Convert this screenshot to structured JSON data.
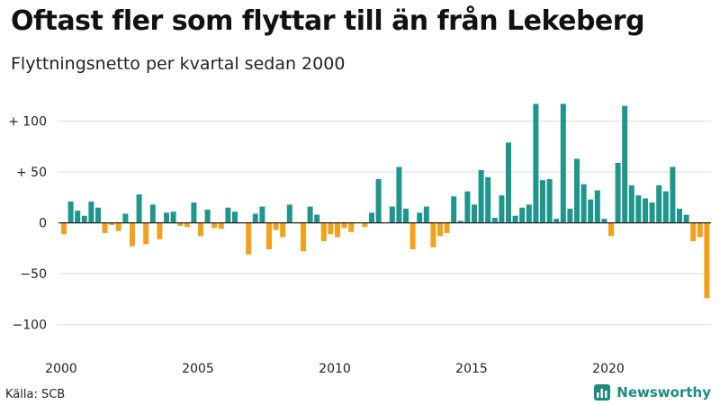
{
  "title": "Oftast fler som flyttar till än från Lekeberg",
  "subtitle": "Flyttningsnetto per kvartal sedan 2000",
  "source": "Källa: SCB",
  "brand": {
    "name": "Newsworthy",
    "icon": "newsworthy-logo-icon"
  },
  "colors": {
    "positive": "#1f968b",
    "negative": "#f5a01a",
    "zero_line": "#222222",
    "grid": "#dddddd",
    "brand": "#1f8a80"
  },
  "chart_data": {
    "type": "bar",
    "title": "Oftast fler som flyttar till än från Lekeberg",
    "subtitle": "Flyttningsnetto per kvartal sedan 2000",
    "xlabel": "",
    "ylabel": "",
    "ylim": [
      -110,
      120
    ],
    "yticks": [
      {
        "value": 100,
        "label": "+ 100"
      },
      {
        "value": 50,
        "label": "+  50"
      },
      {
        "value": 0,
        "label": "0"
      },
      {
        "value": -50,
        "label": "−50"
      },
      {
        "value": -100,
        "label": "−100"
      }
    ],
    "xticks": [
      "2000",
      "2005",
      "2010",
      "2015",
      "2020"
    ],
    "grid": true,
    "legend": "none",
    "start_year": 2000,
    "categories": [
      "2000 K1",
      "2000 K2",
      "2000 K3",
      "2000 K4",
      "2001 K1",
      "2001 K2",
      "2001 K3",
      "2001 K4",
      "2002 K1",
      "2002 K2",
      "2002 K3",
      "2002 K4",
      "2003 K1",
      "2003 K2",
      "2003 K3",
      "2003 K4",
      "2004 K1",
      "2004 K2",
      "2004 K3",
      "2004 K4",
      "2005 K1",
      "2005 K2",
      "2005 K3",
      "2005 K4",
      "2006 K1",
      "2006 K2",
      "2006 K3",
      "2006 K4",
      "2007 K1",
      "2007 K2",
      "2007 K3",
      "2007 K4",
      "2008 K1",
      "2008 K2",
      "2008 K3",
      "2008 K4",
      "2009 K1",
      "2009 K2",
      "2009 K3",
      "2009 K4",
      "2010 K1",
      "2010 K2",
      "2010 K3",
      "2010 K4",
      "2011 K1",
      "2011 K2",
      "2011 K3",
      "2011 K4",
      "2012 K1",
      "2012 K2",
      "2012 K3",
      "2012 K4",
      "2013 K1",
      "2013 K2",
      "2013 K3",
      "2013 K4",
      "2014 K1",
      "2014 K2",
      "2014 K3",
      "2014 K4",
      "2015 K1",
      "2015 K2",
      "2015 K3",
      "2015 K4",
      "2016 K1",
      "2016 K2",
      "2016 K3",
      "2016 K4",
      "2017 K1",
      "2017 K2",
      "2017 K3",
      "2017 K4",
      "2018 K1",
      "2018 K2",
      "2018 K3",
      "2018 K4",
      "2019 K1",
      "2019 K2",
      "2019 K3",
      "2019 K4",
      "2020 K1",
      "2020 K2",
      "2020 K3",
      "2020 K4",
      "2021 K1",
      "2021 K2",
      "2021 K3",
      "2021 K4",
      "2022 K1",
      "2022 K2",
      "2022 K3",
      "2022 K4",
      "2023 K1",
      "2023 K2",
      "2023 K3",
      "2023 K4"
    ],
    "values": [
      -11,
      21,
      12,
      7,
      21,
      15,
      -10,
      -2,
      -8,
      9,
      -23,
      28,
      -21,
      18,
      -16,
      10,
      11,
      -3,
      -4,
      20,
      -13,
      13,
      -5,
      -6,
      15,
      11,
      0,
      -31,
      9,
      16,
      -26,
      -7,
      -14,
      18,
      0,
      -28,
      16,
      8,
      -18,
      -11,
      -14,
      -5,
      -9,
      0,
      -4,
      10,
      43,
      0,
      16,
      55,
      14,
      -26,
      10,
      16,
      -24,
      -13,
      -10,
      26,
      2,
      31,
      18,
      52,
      45,
      5,
      27,
      79,
      7,
      15,
      18,
      117,
      42,
      43,
      4,
      117,
      14,
      63,
      38,
      23,
      32,
      4,
      -13,
      59,
      115,
      37,
      27,
      24,
      20,
      37,
      31,
      55,
      14,
      8,
      -18,
      -14,
      -74,
      0
    ]
  }
}
